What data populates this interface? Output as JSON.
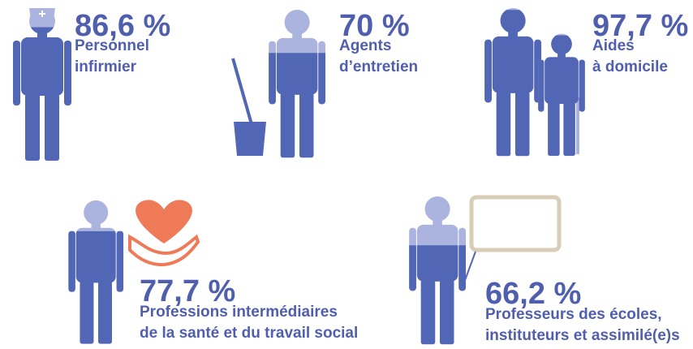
{
  "chart_data": {
    "type": "pictogram",
    "categories": [
      [
        "Personnel",
        "infirmier"
      ],
      [
        "Agents",
        "d’entretien"
      ],
      [
        "Aides",
        "à domicile"
      ],
      [
        "Professions intermédiaires",
        "de la santé et du travail social"
      ],
      [
        "Professeurs des écoles,",
        "instituteurs et assimilé(e)s"
      ]
    ],
    "values": [
      86.6,
      70,
      97.7,
      77.7,
      66.2
    ],
    "value_labels": [
      "86,6 %",
      "70 %",
      "97,7 %",
      "77,7 %",
      "66,2 %"
    ],
    "color": "#5166b4",
    "background_color": "#aab4de"
  }
}
